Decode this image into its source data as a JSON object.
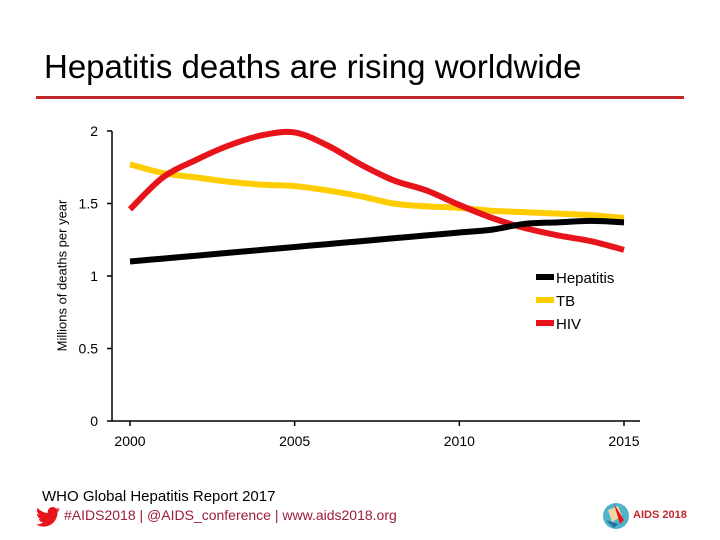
{
  "title": "Hepatitis deaths are rising worldwide",
  "source": "WHO Global Hepatitis Report 2017",
  "footer": {
    "hashtags": "#AIDS2018 | @AIDS_conference | www.aids2018.org",
    "logo_text": "AIDS 2018",
    "icons": [
      "twitter-bird-icon",
      "aids2018-logo"
    ]
  },
  "chart_data": {
    "type": "line",
    "title": "",
    "xlabel": "",
    "ylabel": "Millions of deaths per year",
    "xlim": [
      2000,
      2015
    ],
    "ylim": [
      0,
      2
    ],
    "x_ticks": [
      "2000",
      "2005",
      "2010",
      "2015"
    ],
    "y_ticks": [
      "0",
      "0.5",
      "1",
      "1.5",
      "2"
    ],
    "grid": false,
    "legend_position": "right",
    "x": [
      2000,
      2001,
      2002,
      2003,
      2004,
      2005,
      2006,
      2007,
      2008,
      2009,
      2010,
      2011,
      2012,
      2013,
      2014,
      2015
    ],
    "series": [
      {
        "name": "Hepatitis",
        "color": "#000000",
        "values": [
          1.1,
          1.12,
          1.14,
          1.16,
          1.18,
          1.2,
          1.22,
          1.24,
          1.26,
          1.28,
          1.3,
          1.32,
          1.36,
          1.37,
          1.38,
          1.37
        ]
      },
      {
        "name": "TB",
        "color": "#ffcc00",
        "values": [
          1.77,
          1.71,
          1.68,
          1.65,
          1.63,
          1.62,
          1.59,
          1.55,
          1.5,
          1.48,
          1.47,
          1.45,
          1.44,
          1.43,
          1.42,
          1.4
        ]
      },
      {
        "name": "HIV",
        "color": "#e8141b",
        "values": [
          1.46,
          1.68,
          1.8,
          1.9,
          1.97,
          1.99,
          1.9,
          1.77,
          1.66,
          1.59,
          1.49,
          1.4,
          1.33,
          1.28,
          1.24,
          1.18
        ]
      }
    ]
  }
}
